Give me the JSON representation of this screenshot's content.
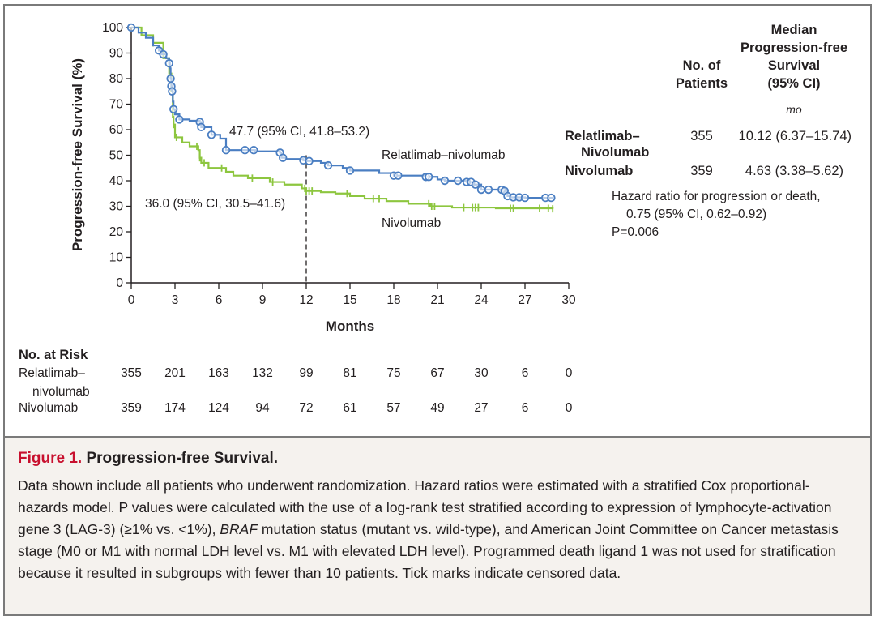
{
  "chart_data": {
    "type": "line",
    "title": "Progression-free Survival",
    "xlabel": "Months",
    "ylabel": "Progression-free Survival (%)",
    "xlim": [
      0,
      30
    ],
    "ylim": [
      0,
      100
    ],
    "xticks": [
      0,
      3,
      6,
      9,
      12,
      15,
      18,
      21,
      24,
      27,
      30
    ],
    "yticks": [
      0,
      10,
      20,
      30,
      40,
      50,
      60,
      70,
      80,
      90,
      100
    ],
    "grid": false,
    "reference_line": {
      "x": 12,
      "style": "dashed"
    },
    "series": [
      {
        "name": "Relatlimab–nivolumab",
        "color": "#4a7ec2",
        "marker": "open-circle",
        "points": [
          [
            0,
            100
          ],
          [
            0.5,
            98
          ],
          [
            1,
            96
          ],
          [
            1.5,
            93
          ],
          [
            1.9,
            91
          ],
          [
            2.1,
            89.5
          ],
          [
            2.4,
            88
          ],
          [
            2.6,
            86
          ],
          [
            2.65,
            84
          ],
          [
            2.7,
            80
          ],
          [
            2.75,
            77
          ],
          [
            2.8,
            75
          ],
          [
            2.85,
            71
          ],
          [
            2.9,
            68
          ],
          [
            3,
            66
          ],
          [
            3.3,
            64
          ],
          [
            4,
            63.5
          ],
          [
            4.7,
            63
          ],
          [
            4.8,
            61
          ],
          [
            5.5,
            58
          ],
          [
            6.1,
            56.5
          ],
          [
            6.5,
            52
          ],
          [
            7.8,
            52
          ],
          [
            8.5,
            51.5
          ],
          [
            10.2,
            51
          ],
          [
            10.3,
            49
          ],
          [
            10.6,
            48.5
          ],
          [
            11.8,
            48
          ],
          [
            12,
            47.7
          ],
          [
            13,
            47
          ],
          [
            13.5,
            46
          ],
          [
            14.5,
            45
          ],
          [
            15,
            44
          ],
          [
            17,
            43
          ],
          [
            18,
            42
          ],
          [
            20.2,
            41.5
          ],
          [
            21,
            40.5
          ],
          [
            21.5,
            40
          ],
          [
            23,
            39.5
          ],
          [
            23.5,
            38.5
          ],
          [
            24,
            36.5
          ],
          [
            25.5,
            36
          ],
          [
            25.8,
            34
          ],
          [
            26,
            33.5
          ],
          [
            27,
            33.3
          ],
          [
            28.9,
            33
          ]
        ],
        "censor_marks": [
          0,
          1.9,
          2.2,
          2.6,
          2.7,
          2.75,
          2.8,
          2.9,
          3.3,
          4.7,
          4.8,
          5.5,
          6.5,
          7.8,
          8.4,
          10.2,
          10.4,
          11.8,
          12.2,
          13.5,
          15,
          18,
          18.3,
          20.2,
          20.4,
          21.5,
          22.4,
          23,
          23.3,
          23.6,
          24,
          24.5,
          25.4,
          25.6,
          25.8,
          26.2,
          26.6,
          27,
          28.4,
          28.8
        ]
      },
      {
        "name": "Nivolumab",
        "color": "#8dc63f",
        "marker": "tick",
        "points": [
          [
            0,
            100
          ],
          [
            0.7,
            97
          ],
          [
            1.5,
            94
          ],
          [
            2.2,
            88
          ],
          [
            2.6,
            82
          ],
          [
            2.75,
            75
          ],
          [
            2.85,
            65
          ],
          [
            2.9,
            62
          ],
          [
            3,
            57
          ],
          [
            3.5,
            55
          ],
          [
            4,
            53.5
          ],
          [
            4.6,
            52
          ],
          [
            4.7,
            49
          ],
          [
            4.8,
            47
          ],
          [
            5.3,
            45
          ],
          [
            6.5,
            43.5
          ],
          [
            7,
            42
          ],
          [
            8,
            41
          ],
          [
            9.5,
            39.5
          ],
          [
            10.5,
            38.5
          ],
          [
            11.7,
            37
          ],
          [
            12,
            36
          ],
          [
            13,
            35.5
          ],
          [
            14,
            35
          ],
          [
            15,
            34
          ],
          [
            16,
            33
          ],
          [
            17.5,
            32
          ],
          [
            19,
            31
          ],
          [
            20.5,
            30
          ],
          [
            22,
            29.5
          ],
          [
            25,
            29.2
          ],
          [
            28.9,
            29
          ]
        ],
        "censor_marks": [
          1.5,
          2.9,
          3.1,
          4.5,
          4.7,
          5,
          6.2,
          8.3,
          9.7,
          11.9,
          12,
          12.2,
          12.4,
          14.8,
          16.6,
          17,
          20.4,
          20.6,
          20.8,
          22.8,
          23.4,
          23.6,
          23.8,
          26,
          26.2,
          28,
          28.6,
          28.9
        ]
      }
    ],
    "annotations": [
      {
        "text": "47.7 (95% CI, 41.8–53.2)",
        "x": 12,
        "y": 47.7
      },
      {
        "text": "36.0 (95% CI, 30.5–41.6)",
        "x": 12,
        "y": 36.0
      },
      {
        "text": "Relatlimab–nivolumab",
        "label_for": "series-1"
      },
      {
        "text": "Nivolumab",
        "label_for": "series-2"
      }
    ]
  },
  "axes": {
    "ylabel": "Progression-free Survival (%)",
    "xlabel": "Months",
    "xtick_labels": [
      "0",
      "3",
      "6",
      "9",
      "12",
      "15",
      "18",
      "21",
      "24",
      "27",
      "30"
    ],
    "ytick_labels": [
      "0",
      "10",
      "20",
      "30",
      "40",
      "50",
      "60",
      "70",
      "80",
      "90",
      "100"
    ]
  },
  "curve_labels": {
    "relatlimab": "Relatlimab–nivolumab",
    "nivolumab": "Nivolumab",
    "median_relatlimab": "47.7 (95% CI, 41.8–53.2)",
    "median_nivolumab": "36.0 (95% CI, 30.5–41.6)"
  },
  "summary_table": {
    "col_patients": [
      "No. of",
      "Patients"
    ],
    "col_median": [
      "Median",
      "Progression-free",
      "Survival",
      "(95% CI)"
    ],
    "unit": "mo",
    "rows": [
      {
        "name_line1": "Relatlimab–",
        "name_line2": "Nivolumab",
        "patients": "355",
        "median": "10.12 (6.37–15.74)"
      },
      {
        "name_line1": "Nivolumab",
        "name_line2": "",
        "patients": "359",
        "median": "4.63 (3.38–5.62)"
      }
    ],
    "hazard_line1": "Hazard ratio for progression or death,",
    "hazard_line2": "0.75 (95% CI, 0.62–0.92)",
    "pvalue": "P=0.006"
  },
  "at_risk": {
    "title": "No. at Risk",
    "rows": [
      {
        "label_line1": "Relatlimab–",
        "label_line2": "nivolumab",
        "values": [
          "355",
          "201",
          "163",
          "132",
          "99",
          "81",
          "75",
          "67",
          "30",
          "6",
          "0"
        ]
      },
      {
        "label_line1": "Nivolumab",
        "label_line2": "",
        "values": [
          "359",
          "174",
          "124",
          "94",
          "72",
          "61",
          "57",
          "49",
          "27",
          "6",
          "0"
        ]
      }
    ]
  },
  "caption": {
    "figure_label": "Figure 1.",
    "title": "Progression-free Survival.",
    "body_part1": "Data shown include all patients who underwent randomization. Hazard ratios were estimated with a stratified Cox proportional-hazards model. P values were calculated with the use of a log-rank test stratified according to expres­sion of lymphocyte-activation gene 3 (LAG-3) (≥1% vs. <1%), ",
    "body_italic": "BRAF",
    "body_part2": " mutation status (mutant vs. wild-type), and American Joint Committee on Cancer metastasis stage (M0 or M1 with normal LDH level vs. M1 with elevated LDH level). Programmed death ligand 1 was not used for stratification because it resulted in subgroups with fewer than 10 patients. Tick marks indicate censored data."
  },
  "colors": {
    "relatlimab": "#4a7ec2",
    "nivolumab": "#8dc63f",
    "figure_label": "#c8102e",
    "caption_bg": "#f5f2ee",
    "border": "#7a7a7a"
  }
}
